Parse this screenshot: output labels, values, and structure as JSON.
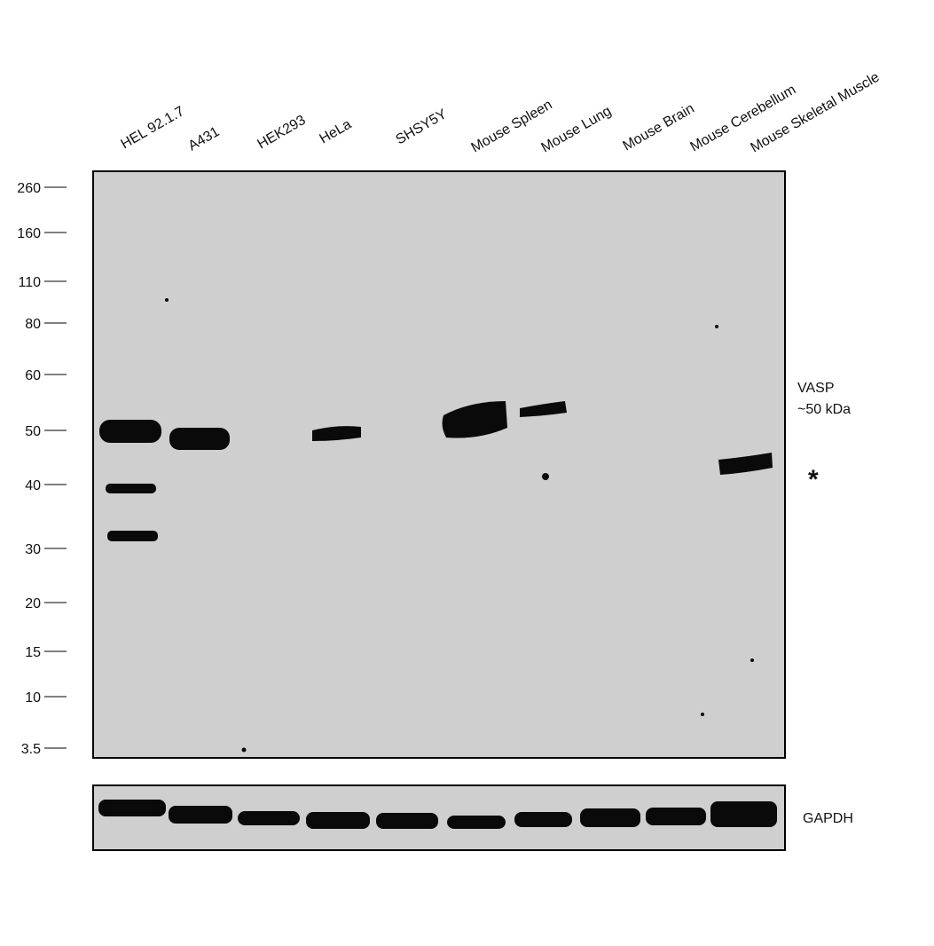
{
  "lanes": [
    "HEL 92.1.7",
    "A431",
    "HEK293",
    "HeLa",
    "SHSY5Y",
    "Mouse Spleen",
    "Mouse Lung",
    "Mouse Brain",
    "Mouse Cerebellum",
    "Mouse Skeletal Muscle"
  ],
  "markers": [
    "260",
    "160",
    "110",
    "80",
    "60",
    "50",
    "40",
    "30",
    "20",
    "15",
    "10",
    "3.5"
  ],
  "annotations": {
    "target": "VASP",
    "size": "~50 kDa",
    "asterisk": "*",
    "loading_control": "GAPDH"
  }
}
